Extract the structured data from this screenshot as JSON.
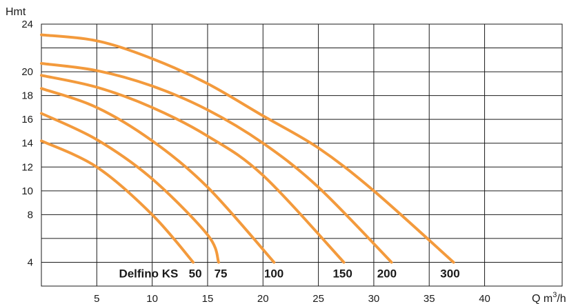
{
  "chart_data": {
    "type": "line",
    "xlabel": "Q m",
    "xlabel_sup": "3",
    "xlabel_tail": "/h",
    "ylabel": "Hmt",
    "xlim": [
      0,
      47
    ],
    "ylim": [
      2,
      24
    ],
    "x_ticks": [
      5,
      10,
      15,
      20,
      25,
      30,
      35,
      40
    ],
    "y_tick_labels": [
      4,
      8,
      10,
      12,
      14,
      16,
      18,
      20,
      24
    ],
    "y_gridlines": [
      2,
      4,
      6,
      8,
      10,
      12,
      14,
      16,
      18,
      20,
      22,
      24
    ],
    "grid": true,
    "line_color": "#f39a3c",
    "series_prefix": "Delfino KS",
    "series": [
      {
        "name": "50",
        "x": [
          0,
          5,
          10,
          13.7
        ],
        "y": [
          14.2,
          12.0,
          8.0,
          4.0
        ]
      },
      {
        "name": "75",
        "x": [
          0,
          5,
          10,
          15,
          16.0
        ],
        "y": [
          16.5,
          14.3,
          11.0,
          6.3,
          4.0
        ]
      },
      {
        "name": "100",
        "x": [
          0,
          5,
          10,
          15,
          21.0
        ],
        "y": [
          18.6,
          17.0,
          14.2,
          10.3,
          4.0
        ]
      },
      {
        "name": "150",
        "x": [
          0,
          5,
          10,
          15,
          20,
          27.3
        ],
        "y": [
          19.7,
          18.7,
          17.0,
          14.6,
          11.3,
          4.0
        ]
      },
      {
        "name": "200",
        "x": [
          0,
          5,
          10,
          15,
          20,
          25,
          31.6
        ],
        "y": [
          20.7,
          20.1,
          18.8,
          16.8,
          14.0,
          10.3,
          4.0
        ]
      },
      {
        "name": "300",
        "x": [
          0,
          5,
          10,
          15,
          20,
          25,
          30,
          37.2
        ],
        "y": [
          23.1,
          22.6,
          21.1,
          19.0,
          16.3,
          13.6,
          10.0,
          4.0
        ]
      }
    ],
    "label_y": 4
  }
}
